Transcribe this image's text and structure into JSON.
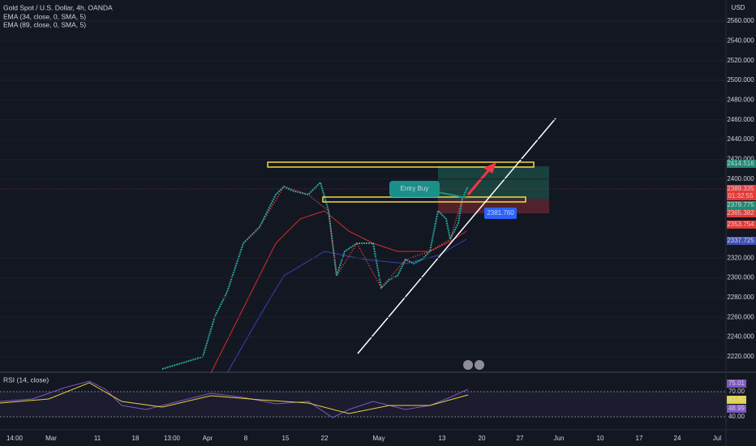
{
  "header": {
    "title": "Gold Spot / U.S. Dollar, 4h, OANDA",
    "indicators": [
      "EMA (34, close, 0, SMA, 5)",
      "EMA (89, close, 0, SMA, 5)"
    ],
    "currency": "USD"
  },
  "price_axis": {
    "ticks": [
      {
        "value": 2560,
        "label": "2560.000"
      },
      {
        "value": 2540,
        "label": "2540.000"
      },
      {
        "value": 2520,
        "label": "2520.000"
      },
      {
        "value": 2500,
        "label": "2500.000"
      },
      {
        "value": 2480,
        "label": "2480.000"
      },
      {
        "value": 2460,
        "label": "2460.000"
      },
      {
        "value": 2440,
        "label": "2440.000"
      },
      {
        "value": 2420,
        "label": "2420.000"
      },
      {
        "value": 2400,
        "label": "2400.000"
      },
      {
        "value": 2320,
        "label": "2320.000"
      },
      {
        "value": 2300,
        "label": "2300.000"
      },
      {
        "value": 2280,
        "label": "2280.000"
      },
      {
        "value": 2260,
        "label": "2260.000"
      },
      {
        "value": 2240,
        "label": "2240.000"
      },
      {
        "value": 2220,
        "label": "2220.000"
      }
    ],
    "badges": [
      {
        "label": "2414.516",
        "color": "#1f8a70"
      },
      {
        "label": "2389.335",
        "color": "#e53935"
      },
      {
        "label": "01:32:55",
        "color": "#e53935"
      },
      {
        "label": "2379.775",
        "color": "#1f8a70"
      },
      {
        "label": "2365.382",
        "color": "#e53935"
      },
      {
        "label": "2353.754",
        "color": "#e53935"
      },
      {
        "label": "2337.725",
        "color": "#3f51b5"
      }
    ]
  },
  "annotations": {
    "entry": "Entry Buy",
    "level": "2381.760"
  },
  "rsi": {
    "title": "RSI (14, close)",
    "labels": [
      "75.01",
      "70.00",
      "62.95",
      "48.99",
      "40.00"
    ]
  },
  "time_axis": [
    "14:00",
    "Mar",
    "11",
    "18",
    "13:00",
    "Apr",
    "8",
    "15",
    "22",
    "May",
    "13",
    "20",
    "27",
    "Jun",
    "10",
    "17",
    "24",
    "Jul"
  ]
}
